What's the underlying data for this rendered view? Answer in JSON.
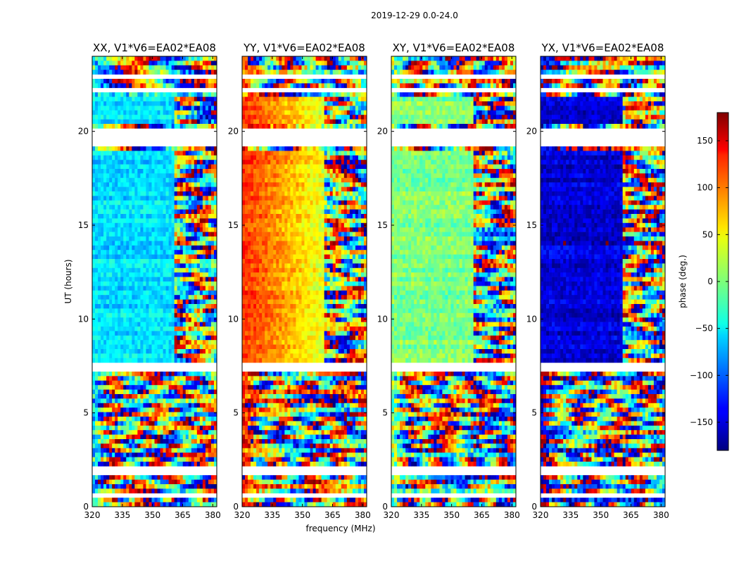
{
  "chart_data": {
    "type": "heatmap",
    "suptitle": "2019-12-29 0.0-24.0",
    "xlabel": "frequency (MHz)",
    "ylabel": "UT (hours)",
    "xlim": [
      320,
      382
    ],
    "ylim": [
      0,
      24
    ],
    "xticks": [
      320,
      335,
      350,
      365,
      380
    ],
    "yticks": [
      0,
      5,
      10,
      15,
      20
    ],
    "panels": [
      {
        "title": "XX, V1*V6=EA02*EA08",
        "dominant_phase": -55
      },
      {
        "title": "YY, V1*V6=EA02*EA08",
        "dominant_phase": 120
      },
      {
        "title": "XY, V1*V6=EA02*EA08",
        "dominant_phase": 0
      },
      {
        "title": "YX, V1*V6=EA02*EA08",
        "dominant_phase": -150
      }
    ],
    "flagged_ut_ranges": [
      [
        0.5,
        0.8
      ],
      [
        1.7,
        2.1
      ],
      [
        7.2,
        7.6
      ],
      [
        19.2,
        20.2
      ],
      [
        22.0,
        22.3
      ],
      [
        22.8,
        23.0
      ]
    ],
    "colorbar": {
      "label": "phase (deg.)",
      "min": -180,
      "max": 180,
      "ticks": [
        150,
        100,
        50,
        0,
        -50,
        -100,
        -150
      ],
      "tick_labels": [
        "150",
        "100",
        "50",
        "0",
        "−50",
        "−100",
        "−150"
      ]
    }
  }
}
